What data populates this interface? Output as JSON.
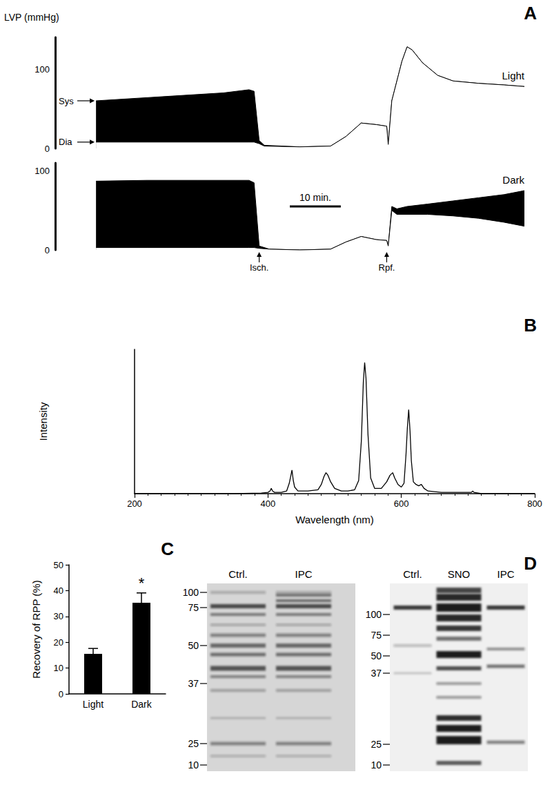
{
  "chart_data": [
    {
      "type": "line",
      "panel": "A",
      "title": "Light",
      "ylabel": "LVP (mmHg)",
      "xlim": [
        -8,
        84
      ],
      "ylim": [
        0,
        140
      ],
      "yticks": [
        0,
        100
      ],
      "tick_labels": "y",
      "x": [
        0,
        5,
        10,
        15,
        20,
        25,
        30,
        31,
        32,
        33,
        40,
        46,
        49,
        52,
        55,
        57,
        57.3,
        58,
        60,
        61,
        62,
        64,
        67,
        70,
        75,
        80,
        84
      ],
      "series": [
        {
          "color": "#000000",
          "values": [
            60,
            62,
            64,
            66,
            68,
            70,
            74,
            72,
            10,
            4,
            2,
            3,
            15,
            32,
            30,
            28,
            5,
            60,
            110,
            128,
            124,
            108,
            92,
            85,
            82,
            80,
            78
          ]
        },
        {
          "color": "#000000",
          "values": [
            8,
            8,
            8,
            8,
            8,
            8,
            8,
            8,
            6,
            3,
            2,
            3,
            15,
            32,
            30,
            28,
            5,
            60,
            110,
            128,
            124,
            108,
            92,
            85,
            82,
            80,
            78
          ]
        }
      ],
      "annotations": [
        {
          "text": "Sys",
          "y": 60
        },
        {
          "text": "Dia",
          "y": 8
        }
      ]
    },
    {
      "type": "line",
      "title": "Dark",
      "xlim": [
        -8,
        84
      ],
      "ylim": [
        0,
        110
      ],
      "yticks": [
        0,
        100
      ],
      "tick_labels": "y",
      "x": [
        0,
        10,
        20,
        30,
        31,
        32,
        34,
        40,
        46,
        49,
        52,
        55,
        57,
        57.3,
        58,
        59,
        61,
        65,
        70,
        75,
        80,
        84
      ],
      "series": [
        {
          "color": "#000000",
          "values": [
            87,
            88,
            88,
            88,
            85,
            5,
            1,
            0,
            1,
            10,
            17,
            13,
            12,
            5,
            55,
            52,
            55,
            58,
            62,
            66,
            70,
            75
          ]
        },
        {
          "color": "#000000",
          "values": [
            3,
            3,
            3,
            3,
            3,
            2,
            1,
            0,
            1,
            10,
            17,
            13,
            12,
            5,
            50,
            45,
            45,
            45,
            43,
            40,
            35,
            30
          ]
        }
      ],
      "annotations": [
        {
          "text": "Isch.",
          "x": 32
        },
        {
          "text": "Rpf.",
          "x": 57
        }
      ],
      "scale_bar": {
        "label": "10 min.",
        "length": 10,
        "x": 38,
        "y": 55
      }
    },
    {
      "type": "line",
      "panel": "B",
      "xlabel": "Wavelength (nm)",
      "ylabel": "Intensity",
      "xlim": [
        200,
        800
      ],
      "xticks": [
        200,
        400,
        600,
        800
      ],
      "ylim": [
        0,
        110
      ],
      "yticks": [],
      "tick_labels": "x",
      "color": "#000000",
      "x": [
        200,
        350,
        390,
        400,
        403,
        405,
        407,
        410,
        420,
        428,
        432,
        434,
        436,
        438,
        440,
        445,
        460,
        475,
        480,
        484,
        487,
        490,
        494,
        500,
        510,
        520,
        530,
        536,
        540,
        543,
        545,
        547,
        550,
        554,
        560,
        570,
        578,
        583,
        587,
        590,
        595,
        600,
        604,
        607,
        609,
        611,
        613,
        615,
        618,
        622,
        626,
        630,
        634,
        640,
        660,
        690,
        705,
        707,
        709,
        720,
        750,
        800
      ],
      "values": [
        0,
        0,
        0.5,
        1,
        2,
        4,
        2,
        1,
        1,
        2,
        8,
        13,
        18,
        10,
        5,
        2,
        2,
        3,
        7,
        13,
        16,
        14,
        9,
        4,
        2,
        2,
        3,
        10,
        40,
        85,
        100,
        88,
        45,
        12,
        4,
        4,
        9,
        14,
        16,
        12,
        7,
        5,
        8,
        30,
        50,
        64,
        48,
        25,
        9,
        7,
        6,
        7,
        4,
        2,
        1,
        1,
        1,
        2,
        1,
        0,
        0,
        0
      ]
    },
    {
      "type": "bar",
      "panel": "C",
      "ylabel": "Recovery of RPP (%)",
      "categories": [
        "Light",
        "Dark"
      ],
      "values": [
        15.5,
        35.3
      ],
      "errors": [
        2.1,
        3.8
      ],
      "color": "#000000",
      "ylim": [
        0,
        50
      ],
      "yticks": [
        0,
        10,
        20,
        30,
        40,
        50
      ],
      "annotations": [
        {
          "text": "*",
          "category": "Dark",
          "y": 43
        }
      ]
    }
  ],
  "panel_D": {
    "panel": "D",
    "blots": [
      {
        "lanes": [
          "Ctrl.",
          "IPC"
        ],
        "markers": [
          100,
          75,
          50,
          37,
          25,
          10
        ]
      },
      {
        "lanes": [
          "Ctrl.",
          "SNO",
          "IPC"
        ],
        "markers": [
          100,
          75,
          50,
          37,
          25,
          10
        ]
      }
    ]
  }
}
